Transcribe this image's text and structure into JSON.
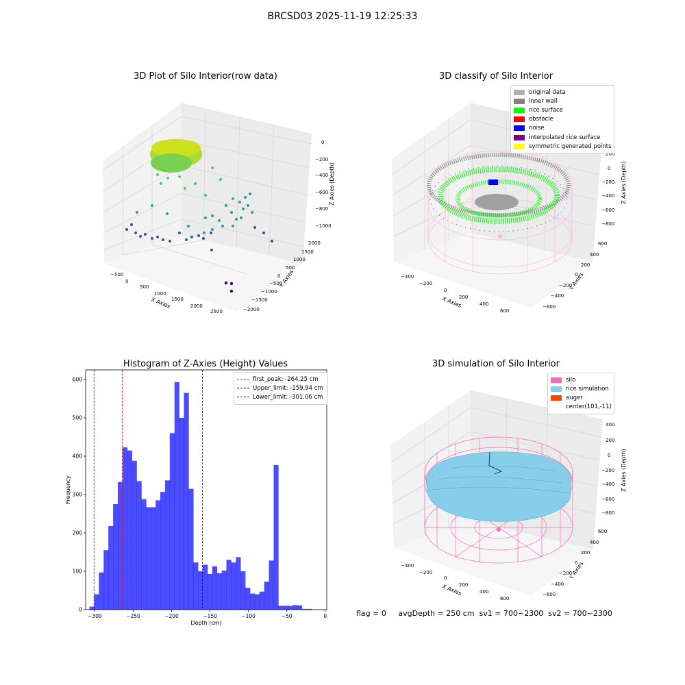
{
  "figure": {
    "suptitle": "BRCSD03 2025-11-19 12:25:33",
    "footer": {
      "flag": "flag = 0",
      "avg_depth": "avgDepth = 250 cm",
      "sv1": "sv1 = 700~2300",
      "sv2": "sv2 = 700~2300"
    }
  },
  "panels": {
    "raw": {
      "title": "3D Plot of Silo Interior(row data)",
      "xlabel": "X Axies",
      "ylabel": "Y Axies",
      "zlabel": "Z Axies (Depth)",
      "xticks": [
        "−500",
        "0",
        "500",
        "1000",
        "1500",
        "2000",
        "2500"
      ],
      "yticks": [
        "2000",
        "1500",
        "1000",
        "500",
        "0",
        "−500",
        "−1000",
        "−1500",
        "−2000"
      ],
      "zticks": [
        "0",
        "−200",
        "−400",
        "−600",
        "−800",
        "−1000"
      ]
    },
    "classify": {
      "title": "3D classify of Silo Interior",
      "xlabel": "X Axies",
      "ylabel": "Y Axies",
      "zlabel": "Z Axies (Depth)",
      "xticks": [
        "−400",
        "−200",
        "0",
        "200",
        "400",
        "600"
      ],
      "yticks": [
        "600",
        "400",
        "200",
        "0",
        "−200",
        "−400",
        "−600"
      ],
      "zticks": [
        "200",
        "0",
        "−200",
        "−400",
        "−600",
        "−800"
      ],
      "zticks_partial": "00",
      "legend": [
        {
          "label": "original data",
          "color": "#b0b0b0"
        },
        {
          "label": "inner wall",
          "color": "#808080"
        },
        {
          "label": "rice surface",
          "color": "#00ff00"
        },
        {
          "label": "obstacle",
          "color": "#ff0000"
        },
        {
          "label": "noise",
          "color": "#0000ff"
        },
        {
          "label": "interpolated rice surface",
          "color": "#800080"
        },
        {
          "label": "symmetric generated points",
          "color": "#ffff00"
        }
      ]
    },
    "simulation": {
      "title": "3D simulation of Silo Interior",
      "xlabel": "X Axies",
      "ylabel": "Y Axies",
      "zlabel": "Z Axies (Depth)",
      "xticks": [
        "−400",
        "−200",
        "0",
        "200",
        "400",
        "600"
      ],
      "yticks": [
        "600",
        "400",
        "200",
        "0",
        "−200",
        "−400",
        "−600"
      ],
      "zticks": [
        "400",
        "200",
        "0",
        "−200",
        "−400",
        "−600",
        "−800"
      ],
      "legend": [
        {
          "label": "silo",
          "color": "#ff69b4"
        },
        {
          "label": "rice simulation",
          "color": "#87ceeb"
        },
        {
          "label": "auger",
          "color": "#ff4500"
        },
        {
          "label": "center(101,-11)",
          "color": "#ffffff"
        }
      ]
    }
  },
  "chart_data": [
    {
      "type": "bar",
      "title": "Histogram of Z-Axies (Height) Values",
      "xlabel": "Depth (cm)",
      "ylabel": "Frequency",
      "xlim": [
        -312,
        2
      ],
      "ylim": [
        0,
        625
      ],
      "xticks": [
        -300,
        -250,
        -200,
        -150,
        -100,
        -50,
        0
      ],
      "xtick_labels": [
        "−300",
        "−250",
        "−200",
        "−150",
        "−100",
        "−50",
        "0"
      ],
      "yticks": [
        0,
        100,
        200,
        300,
        400,
        500,
        600
      ],
      "bar_color": "#0000ff",
      "bin_start": -307,
      "bin_width": 6.15,
      "values": [
        8,
        40,
        97,
        155,
        218,
        275,
        333,
        423,
        415,
        388,
        335,
        288,
        267,
        267,
        285,
        307,
        337,
        460,
        593,
        500,
        565,
        315,
        123,
        100,
        117,
        93,
        113,
        95,
        102,
        130,
        123,
        137,
        100,
        57,
        42,
        40,
        47,
        73,
        128,
        377,
        10,
        10,
        10,
        12,
        11,
        2,
        2
      ],
      "vlines": [
        {
          "x": -264.25,
          "color": "#ff0000",
          "label": "first_peak: -264.25 cm"
        },
        {
          "x": -159.94,
          "color": "#0000b0",
          "label": "Upper_limit: -159.94 cm"
        },
        {
          "x": -301.06,
          "color": "#0000b0",
          "label": "Lower_limit: -301.06 cm"
        }
      ],
      "legend_position": "upper right"
    }
  ]
}
